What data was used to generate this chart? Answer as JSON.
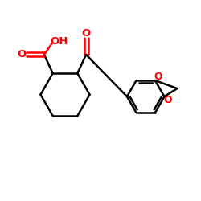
{
  "background_color": "#ffffff",
  "bond_color": "#000000",
  "heteroatom_color": "#ff0000",
  "line_width": 1.8,
  "font_size": 8.5,
  "figure_size": [
    2.5,
    2.5
  ],
  "dpi": 100,
  "xlim": [
    0,
    10
  ],
  "ylim": [
    0,
    10
  ]
}
